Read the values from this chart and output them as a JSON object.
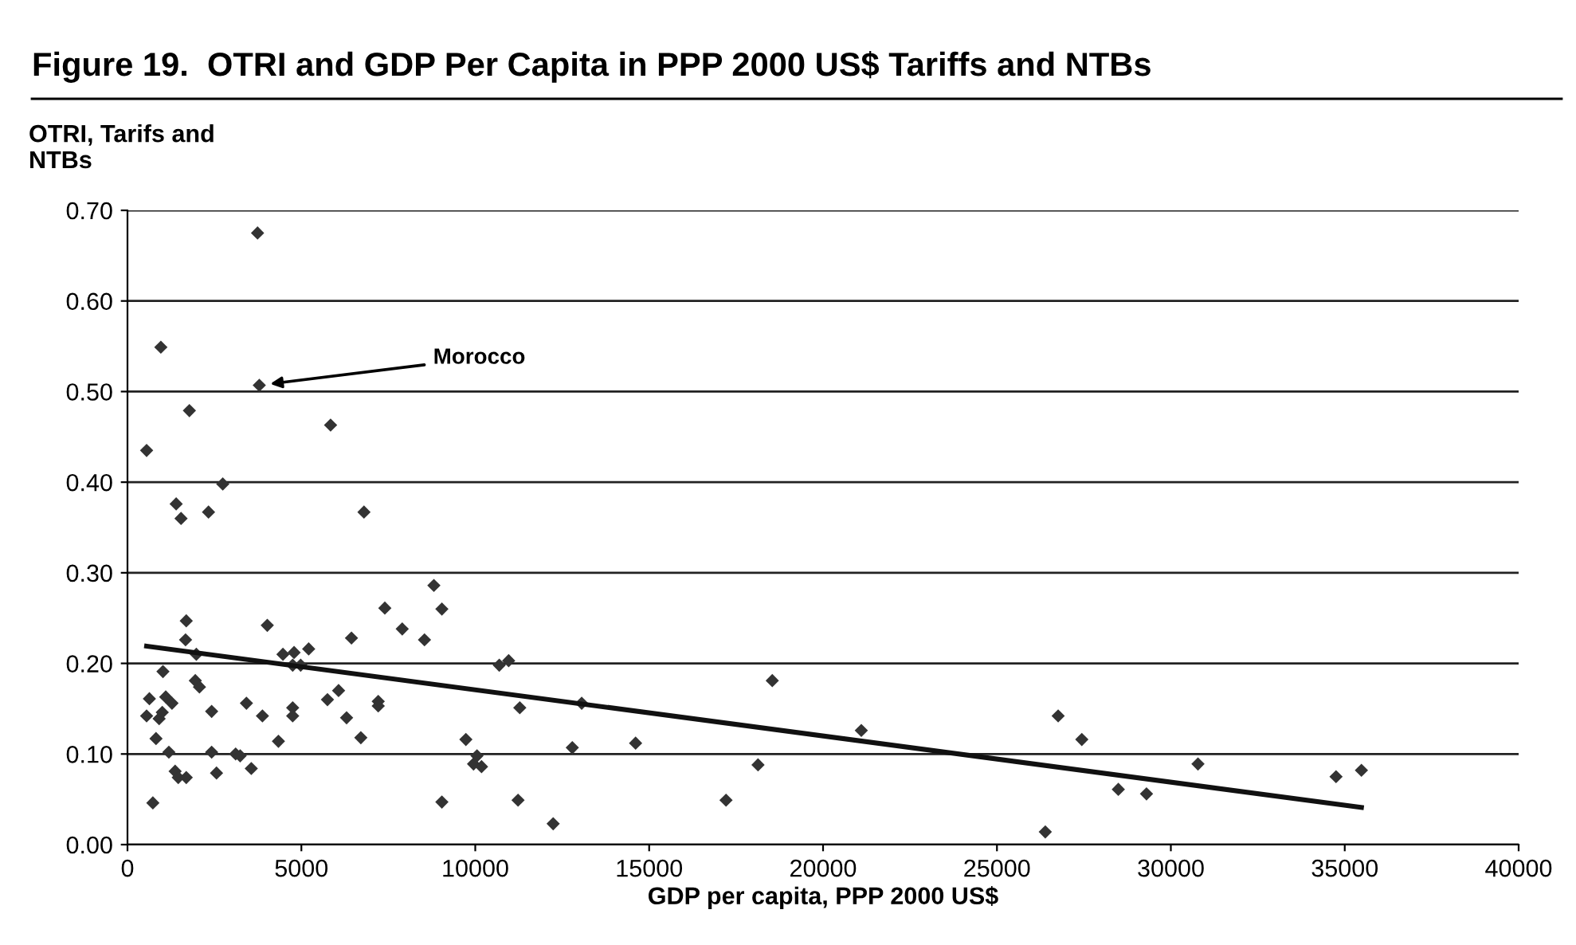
{
  "chart_data": {
    "type": "scatter",
    "title": "Figure 19.  OTRI and GDP Per Capita in PPP 2000 US$ Tariffs and NTBs",
    "xlabel": "GDP per capita, PPP 2000 US$",
    "ylabel": "OTRI, Tarifs and\nNTBs",
    "annotations": [
      {
        "text": "Morocco",
        "x": 3790,
        "y": 0.507
      }
    ],
    "series": [
      {
        "color": "#333333",
        "marker": "diamond",
        "x": [
          3740,
          960,
          3790,
          1780,
          5840,
          550,
          2740,
          1400,
          1540,
          2330,
          6800,
          8810,
          7400,
          9040,
          1690,
          4020,
          7900,
          1670,
          6440,
          8540,
          1980,
          4470,
          4790,
          5210,
          4750,
          4980,
          10690,
          10960,
          1020,
          1950,
          2070,
          630,
          1100,
          1280,
          2420,
          3420,
          5750,
          6070,
          7210,
          7210,
          3880,
          4750,
          4750,
          6300,
          11280,
          13060,
          550,
          910,
          1000,
          820,
          4340,
          6710,
          9730,
          1190,
          2420,
          3110,
          3240,
          10050,
          9950,
          10180,
          12790,
          1370,
          1460,
          1690,
          2560,
          3560,
          730,
          9040,
          11230,
          12240,
          14610,
          18540,
          21100,
          18130,
          17210,
          26390,
          26760,
          27440,
          28490,
          29300,
          30780,
          34750,
          35480
        ],
        "values": [
          0.675,
          0.549,
          0.507,
          0.479,
          0.463,
          0.435,
          0.398,
          0.376,
          0.36,
          0.367,
          0.367,
          0.286,
          0.261,
          0.26,
          0.247,
          0.242,
          0.238,
          0.226,
          0.228,
          0.226,
          0.21,
          0.21,
          0.212,
          0.216,
          0.198,
          0.198,
          0.198,
          0.203,
          0.191,
          0.181,
          0.174,
          0.161,
          0.163,
          0.156,
          0.147,
          0.156,
          0.16,
          0.17,
          0.158,
          0.153,
          0.142,
          0.151,
          0.142,
          0.14,
          0.151,
          0.156,
          0.142,
          0.139,
          0.146,
          0.117,
          0.114,
          0.118,
          0.116,
          0.102,
          0.102,
          0.1,
          0.098,
          0.098,
          0.089,
          0.086,
          0.107,
          0.081,
          0.074,
          0.074,
          0.079,
          0.084,
          0.046,
          0.047,
          0.049,
          0.023,
          0.112,
          0.181,
          0.126,
          0.088,
          0.049,
          0.014,
          0.142,
          0.116,
          0.061,
          0.056,
          0.089,
          0.075,
          0.082
        ]
      },
      {
        "type": "line",
        "color": "#111111",
        "line_style": "solid",
        "x": [
          550,
          35480
        ],
        "values": [
          0.219,
          0.041
        ]
      }
    ],
    "xlim": [
      0,
      40000
    ],
    "xticks": [
      0,
      5000,
      10000,
      15000,
      20000,
      25000,
      30000,
      35000,
      40000
    ],
    "ylim": [
      0,
      0.7
    ],
    "yticks": [
      {
        "value": 0,
        "label": "0.00"
      },
      {
        "value": 0.1,
        "label": "0.10"
      },
      {
        "value": 0.2,
        "label": "0.20"
      },
      {
        "value": 0.3,
        "label": "0.30"
      },
      {
        "value": 0.4,
        "label": "0.40"
      },
      {
        "value": 0.5,
        "label": "0.50"
      },
      {
        "value": 0.6,
        "label": "0.60"
      },
      {
        "value": 0.7,
        "label": "0.70"
      }
    ],
    "grid": "y",
    "legend": false
  }
}
